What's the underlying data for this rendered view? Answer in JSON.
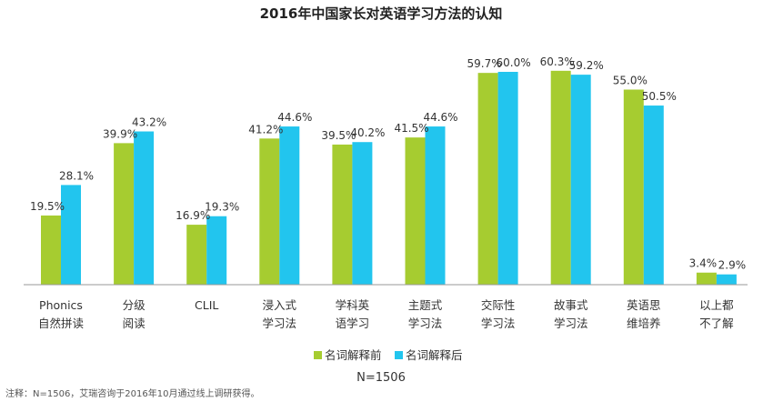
{
  "chart_data": {
    "type": "bar",
    "title": "2016年中国家长对英语学习方法的认知",
    "categories": [
      [
        "Phonics",
        "自然拼读"
      ],
      [
        "分级",
        "阅读"
      ],
      [
        "CLIL",
        ""
      ],
      [
        "浸入式",
        "学习法"
      ],
      [
        "学科英",
        "语学习"
      ],
      [
        "主题式",
        "学习法"
      ],
      [
        "交际性",
        "学习法"
      ],
      [
        "故事式",
        "学习法"
      ],
      [
        "英语思",
        "维培养"
      ],
      [
        "以上都",
        "不了解"
      ]
    ],
    "series": [
      {
        "name": "名词解释前",
        "color": "#a6cc30",
        "values": [
          19.5,
          39.9,
          16.9,
          41.2,
          39.5,
          41.5,
          59.7,
          60.3,
          55.0,
          3.4
        ]
      },
      {
        "name": "名词解释后",
        "color": "#22c5ee",
        "values": [
          28.1,
          43.2,
          19.3,
          44.6,
          40.2,
          44.6,
          60.0,
          59.2,
          50.5,
          2.9
        ]
      }
    ],
    "value_labels": [
      [
        "19.5%",
        "39.9%",
        "16.9%",
        "41.2%",
        "39.5%",
        "41.5%",
        "59.7%",
        "60.3%",
        "55.0%",
        "3.4%"
      ],
      [
        "28.1%",
        "43.2%",
        "19.3%",
        "44.6%",
        "40.2%",
        "44.6%",
        "60.0%",
        "59.2%",
        "50.5%",
        "2.9%"
      ]
    ],
    "unit": "%",
    "ylim": [
      0,
      60
    ],
    "grid": false,
    "legend_position": "bottom-center",
    "sample_size": "N=1506",
    "note": "注释：N=1506，艾瑞咨询于2016年10月通过线上调研获得。"
  },
  "colors": {
    "axis": "#999999"
  }
}
